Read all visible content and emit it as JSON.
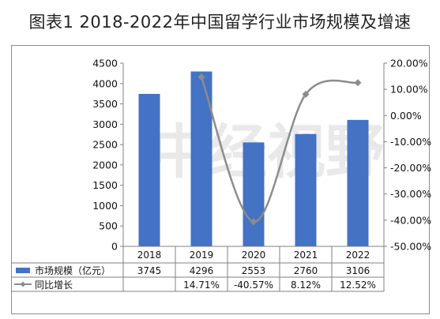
{
  "title": "图表1  2018-2022年中国留学行业市场规模及增速",
  "chart_data": {
    "type": "bar",
    "categories": [
      "2018",
      "2019",
      "2020",
      "2021",
      "2022"
    ],
    "series": [
      {
        "name": "市场规模（亿元）",
        "type": "bar",
        "axis": "left",
        "color": "#4472c4",
        "values": [
          3745,
          4296,
          2553,
          2760,
          3106
        ],
        "labels": [
          "3745",
          "4296",
          "2553",
          "2760",
          "3106"
        ]
      },
      {
        "name": "同比增长",
        "type": "line",
        "axis": "right",
        "color": "#8c8c8c",
        "values": [
          null,
          14.71,
          -40.57,
          8.12,
          12.52
        ],
        "labels": [
          "",
          "14.71%",
          "-40.57%",
          "8.12%",
          "12.52%"
        ]
      }
    ],
    "y_left": {
      "min": 0,
      "max": 4500,
      "step": 500
    },
    "y_right": {
      "min": -50,
      "max": 20,
      "step": 10,
      "ticks": [
        "20.00%",
        "10.00%",
        "0.00%",
        "-10.00%",
        "-20.00%",
        "-30.00%",
        "-40.00%",
        "-50.00%"
      ]
    },
    "data_table": true,
    "watermark": "中经视野"
  }
}
